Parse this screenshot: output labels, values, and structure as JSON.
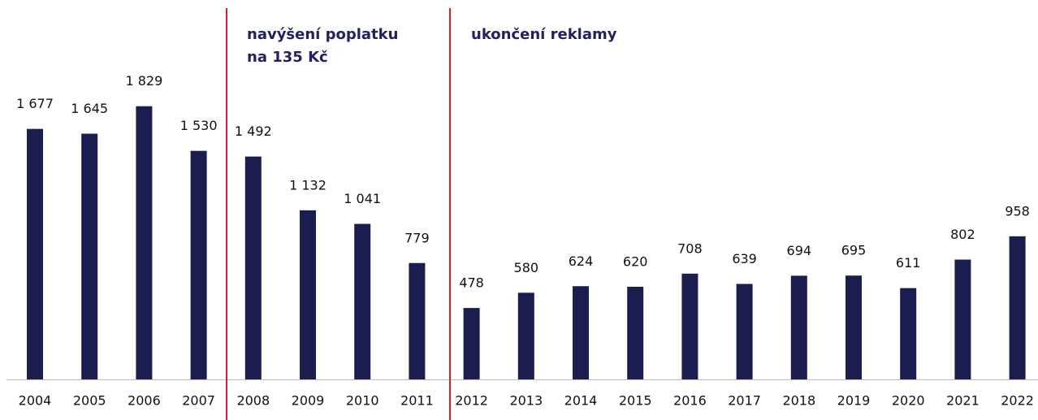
{
  "chart_data": {
    "type": "bar",
    "categories": [
      "2004",
      "2005",
      "2006",
      "2007",
      "2008",
      "2009",
      "2010",
      "2011",
      "2012",
      "2013",
      "2014",
      "2015",
      "2016",
      "2017",
      "2018",
      "2019",
      "2020",
      "2021",
      "2022"
    ],
    "values": [
      1677,
      1645,
      1829,
      1530,
      1492,
      1132,
      1041,
      779,
      478,
      580,
      624,
      620,
      708,
      639,
      694,
      695,
      611,
      802,
      958
    ],
    "value_labels": [
      "1 677",
      "1 645",
      "1 829",
      "1 530",
      "1 492",
      "1 132",
      "1 041",
      "779",
      "478",
      "580",
      "624",
      "620",
      "708",
      "639",
      "694",
      "695",
      "611",
      "802",
      "958"
    ],
    "color": "#1b1d4f",
    "ylim": [
      0,
      2540
    ],
    "annotations": [
      "navýšení poplatku",
      "na 135 Kč",
      "ukončení reklamy"
    ],
    "annotation_color": "#d4202c"
  }
}
